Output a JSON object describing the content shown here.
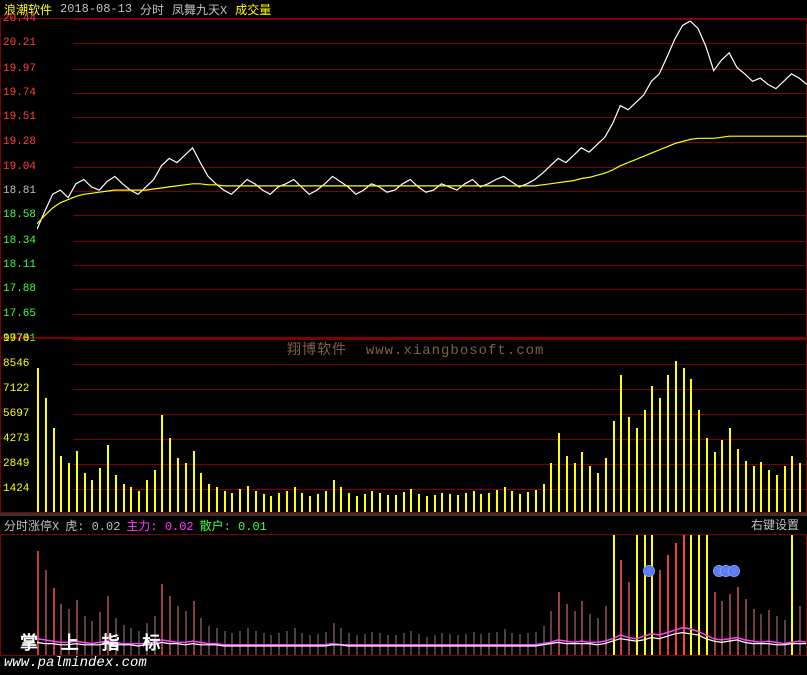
{
  "header": {
    "stock_name": "浪潮软件",
    "date": "2018-08-13",
    "period_label": "分时",
    "indicator_name": "凤舞九天X",
    "volume_label": "成交量",
    "stock_color": "#ffff00",
    "date_color": "#c0c0c0",
    "ind_color": "#c0c0c0",
    "vol_color": "#ffff00"
  },
  "price_chart": {
    "ylim": [
      17.41,
      20.44
    ],
    "yticks": [
      20.44,
      20.21,
      19.97,
      19.74,
      19.51,
      19.28,
      19.04,
      18.81,
      18.58,
      18.34,
      18.11,
      17.88,
      17.65,
      17.41
    ],
    "tick_colors": [
      "#ff4040",
      "#ff4040",
      "#ff4040",
      "#ff4040",
      "#ff4040",
      "#ff4040",
      "#ff4040",
      "#c0c0c0",
      "#40ff40",
      "#40ff40",
      "#40ff40",
      "#40ff40",
      "#40ff40",
      "#40ff40"
    ],
    "grid_color": "#800000",
    "price_line_color": "#ffffff",
    "avg_line_color": "#ffff00",
    "price": [
      18.45,
      18.62,
      18.78,
      18.82,
      18.75,
      18.88,
      18.92,
      18.85,
      18.82,
      18.9,
      18.95,
      18.88,
      18.82,
      18.78,
      18.85,
      18.92,
      19.05,
      19.12,
      19.08,
      19.15,
      19.22,
      19.08,
      18.95,
      18.88,
      18.82,
      18.78,
      18.85,
      18.92,
      18.88,
      18.82,
      18.78,
      18.85,
      18.88,
      18.92,
      18.85,
      18.78,
      18.82,
      18.88,
      18.95,
      18.9,
      18.85,
      18.78,
      18.82,
      18.88,
      18.85,
      18.8,
      18.82,
      18.88,
      18.92,
      18.85,
      18.8,
      18.82,
      18.88,
      18.85,
      18.82,
      18.88,
      18.92,
      18.85,
      18.88,
      18.92,
      18.95,
      18.9,
      18.85,
      18.88,
      18.92,
      18.98,
      19.05,
      19.12,
      19.08,
      19.15,
      19.22,
      19.18,
      19.25,
      19.32,
      19.45,
      19.62,
      19.58,
      19.65,
      19.72,
      19.85,
      19.92,
      20.08,
      20.25,
      20.38,
      20.42,
      20.35,
      20.18,
      19.95,
      20.05,
      20.12,
      19.98,
      19.92,
      19.85,
      19.88,
      19.82,
      19.78,
      19.85,
      19.92,
      19.88,
      19.82
    ],
    "avg": [
      18.5,
      18.58,
      18.65,
      18.7,
      18.73,
      18.76,
      18.78,
      18.79,
      18.8,
      18.81,
      18.82,
      18.82,
      18.82,
      18.82,
      18.82,
      18.83,
      18.84,
      18.85,
      18.86,
      18.87,
      18.88,
      18.88,
      18.87,
      18.87,
      18.86,
      18.86,
      18.86,
      18.86,
      18.86,
      18.86,
      18.86,
      18.86,
      18.86,
      18.86,
      18.86,
      18.86,
      18.86,
      18.86,
      18.86,
      18.86,
      18.86,
      18.86,
      18.86,
      18.86,
      18.86,
      18.86,
      18.86,
      18.86,
      18.86,
      18.86,
      18.86,
      18.86,
      18.86,
      18.86,
      18.86,
      18.86,
      18.86,
      18.86,
      18.86,
      18.86,
      18.86,
      18.86,
      18.86,
      18.86,
      18.86,
      18.87,
      18.88,
      18.89,
      18.9,
      18.91,
      18.93,
      18.94,
      18.96,
      18.98,
      19.01,
      19.05,
      19.08,
      19.11,
      19.14,
      19.17,
      19.2,
      19.23,
      19.26,
      19.28,
      19.3,
      19.31,
      19.31,
      19.31,
      19.32,
      19.33,
      19.33,
      19.33,
      19.33,
      19.33,
      19.33,
      19.33,
      19.33,
      19.33,
      19.33,
      19.33
    ]
  },
  "volume_chart": {
    "ylim": [
      0,
      9970
    ],
    "yticks": [
      9970,
      8546,
      7122,
      5697,
      4273,
      2849,
      1424
    ],
    "tick_color": "#ffff00",
    "bar_color": "#ffff00",
    "grid_color": "#800000",
    "values": [
      8200,
      6500,
      4800,
      3200,
      2800,
      3500,
      2200,
      1800,
      2500,
      3800,
      2100,
      1600,
      1400,
      1200,
      1800,
      2400,
      5500,
      4200,
      3100,
      2800,
      3500,
      2200,
      1600,
      1400,
      1200,
      1100,
      1300,
      1500,
      1200,
      1000,
      900,
      1100,
      1200,
      1400,
      1100,
      900,
      1000,
      1200,
      1800,
      1400,
      1100,
      900,
      1000,
      1200,
      1100,
      950,
      980,
      1150,
      1300,
      1050,
      920,
      960,
      1100,
      1020,
      960,
      1080,
      1200,
      1050,
      1100,
      1250,
      1400,
      1180,
      1050,
      1120,
      1280,
      1600,
      2800,
      4500,
      3200,
      2800,
      3400,
      2600,
      2200,
      3100,
      5200,
      7800,
      5400,
      4800,
      5800,
      7200,
      6500,
      7800,
      8600,
      8200,
      7600,
      5800,
      4200,
      3400,
      4100,
      4800,
      3600,
      2900,
      2600,
      2850,
      2400,
      2100,
      2600,
      3200,
      2800,
      2500
    ]
  },
  "indicator": {
    "name": "分时涨停X",
    "hu_label": "虎:",
    "hu_value": "0.02",
    "main_label": "主力:",
    "main_value": "0.02",
    "retail_label": "散户:",
    "retail_value": "0.01",
    "right_label": "右键设置",
    "hu_color": "#c0c0c0",
    "main_color": "#ff40ff",
    "retail_color": "#40ff40",
    "bars": [
      85,
      70,
      55,
      42,
      38,
      45,
      32,
      28,
      35,
      48,
      30,
      25,
      22,
      20,
      26,
      32,
      58,
      48,
      40,
      36,
      44,
      30,
      24,
      22,
      20,
      18,
      20,
      22,
      20,
      18,
      16,
      18,
      20,
      22,
      18,
      16,
      17,
      19,
      26,
      22,
      18,
      16,
      17,
      19,
      18,
      16,
      16,
      18,
      20,
      17,
      15,
      16,
      18,
      17,
      16,
      17,
      19,
      17,
      18,
      19,
      21,
      18,
      17,
      18,
      19,
      24,
      36,
      52,
      42,
      36,
      44,
      34,
      30,
      40,
      58,
      78,
      60,
      54,
      64,
      76,
      70,
      82,
      92,
      98,
      94,
      86,
      68,
      52,
      44,
      50,
      56,
      46,
      38,
      34,
      37,
      32,
      29,
      34,
      40,
      36
    ],
    "bar_colors": [
      "#c04040",
      "#804040",
      "#c04040",
      "#804040",
      "#604040",
      "#804040",
      "#604040",
      "#504040",
      "#604040",
      "#804040",
      "#604040",
      "#504040",
      "#504040",
      "#404040",
      "#504040",
      "#604040",
      "#a04040",
      "#804040",
      "#704040",
      "#604040",
      "#804040",
      "#604040",
      "#504040",
      "#504040",
      "#404040",
      "#404040",
      "#404040",
      "#504040",
      "#404040",
      "#404040",
      "#404040",
      "#404040",
      "#404040",
      "#504040",
      "#404040",
      "#404040",
      "#404040",
      "#404040",
      "#504040",
      "#504040",
      "#404040",
      "#404040",
      "#404040",
      "#404040",
      "#404040",
      "#404040",
      "#404040",
      "#404040",
      "#404040",
      "#404040",
      "#404040",
      "#404040",
      "#404040",
      "#404040",
      "#404040",
      "#404040",
      "#404040",
      "#404040",
      "#404040",
      "#404040",
      "#504040",
      "#404040",
      "#404040",
      "#404040",
      "#404040",
      "#504040",
      "#604040",
      "#a04040",
      "#804040",
      "#604040",
      "#804040",
      "#604040",
      "#604040",
      "#704040",
      "#a04040",
      "#d04040",
      "#a04040",
      "#a04040",
      "#b04040",
      "#d04040",
      "#c04040",
      "#e04040",
      "#f04040",
      "#ff4040",
      "#f04040",
      "#e04040",
      "#b04040",
      "#a04040",
      "#804040",
      "#904040",
      "#a04040",
      "#804040",
      "#704040",
      "#604040",
      "#704040",
      "#604040",
      "#604040",
      "#604040",
      "#704040",
      "#604040"
    ],
    "yellow_marks": [
      74,
      77,
      78,
      79,
      84,
      85,
      86,
      97
    ],
    "blue_marks": [
      74,
      83,
      84,
      85,
      97
    ],
    "main_line_color": "#ff40ff",
    "retail_line_color": "#ffffff",
    "main_line": [
      15,
      14,
      13,
      12,
      12,
      13,
      12,
      11,
      12,
      13,
      12,
      11,
      11,
      11,
      11,
      12,
      14,
      13,
      12,
      12,
      13,
      12,
      11,
      11,
      10,
      10,
      10,
      10,
      10,
      10,
      10,
      10,
      10,
      10,
      10,
      10,
      10,
      10,
      11,
      10,
      10,
      10,
      10,
      10,
      10,
      10,
      10,
      10,
      10,
      10,
      10,
      10,
      10,
      10,
      10,
      10,
      10,
      10,
      10,
      10,
      10,
      10,
      10,
      10,
      10,
      11,
      12,
      14,
      13,
      12,
      13,
      12,
      12,
      13,
      15,
      18,
      16,
      15,
      17,
      19,
      18,
      20,
      22,
      24,
      23,
      21,
      18,
      15,
      14,
      15,
      16,
      14,
      13,
      12,
      13,
      12,
      11,
      12,
      13,
      12
    ],
    "retail_line": [
      12,
      11,
      11,
      10,
      10,
      11,
      10,
      10,
      10,
      11,
      10,
      10,
      10,
      9,
      10,
      10,
      12,
      11,
      11,
      10,
      11,
      10,
      10,
      10,
      9,
      9,
      9,
      9,
      9,
      9,
      9,
      9,
      9,
      9,
      9,
      9,
      9,
      9,
      10,
      10,
      9,
      9,
      9,
      9,
      9,
      9,
      9,
      9,
      9,
      9,
      9,
      9,
      9,
      9,
      9,
      9,
      9,
      9,
      9,
      9,
      9,
      9,
      9,
      9,
      9,
      10,
      11,
      12,
      11,
      11,
      11,
      11,
      10,
      11,
      13,
      15,
      14,
      13,
      14,
      16,
      15,
      17,
      19,
      20,
      19,
      18,
      15,
      13,
      12,
      13,
      14,
      12,
      11,
      11,
      11,
      10,
      10,
      11,
      11,
      11
    ]
  },
  "watermark": {
    "text1": "翔博软件",
    "text2": "www.xiangbosoft.com",
    "color": "#806040"
  },
  "footer": {
    "overlay_text": "掌 上 指 标",
    "url": "www.palmindex.com"
  }
}
